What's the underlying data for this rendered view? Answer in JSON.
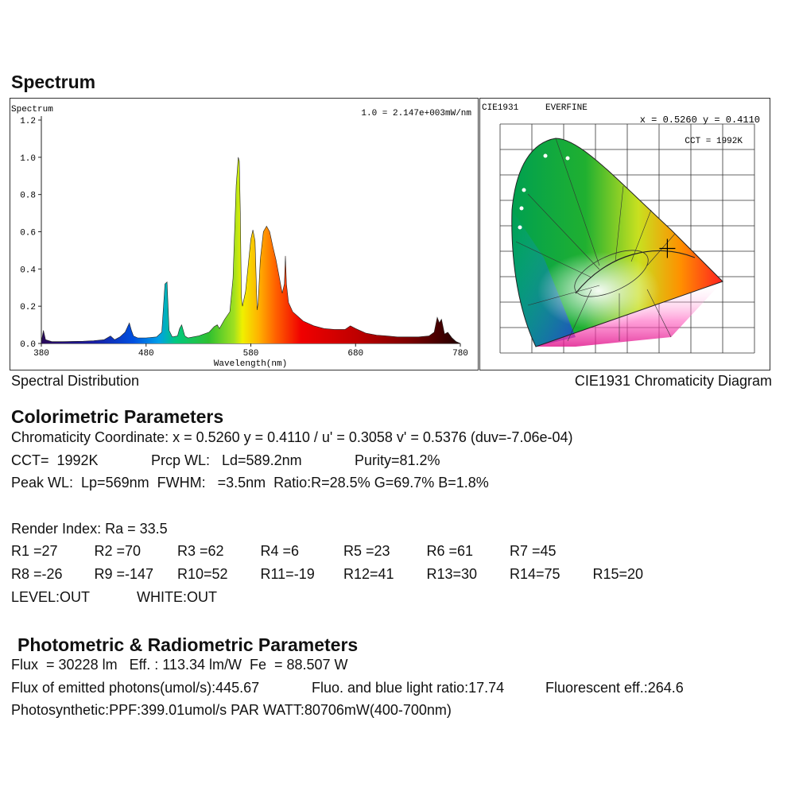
{
  "header": {
    "title": "Spectrum"
  },
  "chart_data": [
    {
      "type": "area",
      "title": "Spectrum",
      "scale_note": "1.0 = 2.147e+003mW/nm",
      "xlabel": "Wavelength(nm)",
      "xlim": [
        380,
        780
      ],
      "ylim": [
        0,
        1.2
      ],
      "xticks": [
        "380",
        "480",
        "580",
        "680",
        "780"
      ],
      "yticks": [
        "0.0",
        "0.2",
        "0.4",
        "0.6",
        "0.8",
        "1.0",
        "1.2"
      ],
      "x": [
        380,
        382,
        384,
        390,
        400,
        410,
        420,
        430,
        440,
        446,
        450,
        455,
        460,
        464,
        466,
        468,
        472,
        480,
        490,
        495,
        498,
        500,
        502,
        505,
        510,
        512,
        514,
        517,
        520,
        530,
        540,
        545,
        548,
        550,
        555,
        560,
        563,
        566,
        568,
        569,
        570,
        571,
        572,
        575,
        578,
        580,
        582,
        584,
        586,
        587,
        589,
        592,
        595,
        598,
        601,
        604,
        607,
        610,
        612,
        613,
        614,
        616,
        620,
        630,
        640,
        650,
        660,
        670,
        675,
        680,
        690,
        700,
        710,
        720,
        730,
        740,
        750,
        755,
        758,
        760,
        762,
        765,
        768,
        772,
        776,
        780
      ],
      "values": [
        0.008,
        0.07,
        0.02,
        0.01,
        0.01,
        0.011,
        0.012,
        0.015,
        0.02,
        0.04,
        0.02,
        0.035,
        0.06,
        0.11,
        0.07,
        0.04,
        0.03,
        0.03,
        0.035,
        0.06,
        0.32,
        0.33,
        0.07,
        0.035,
        0.04,
        0.08,
        0.1,
        0.04,
        0.03,
        0.04,
        0.06,
        0.09,
        0.1,
        0.08,
        0.13,
        0.17,
        0.35,
        0.85,
        1.0,
        0.98,
        0.7,
        0.25,
        0.2,
        0.28,
        0.45,
        0.56,
        0.61,
        0.55,
        0.18,
        0.22,
        0.45,
        0.6,
        0.63,
        0.6,
        0.52,
        0.45,
        0.36,
        0.27,
        0.32,
        0.47,
        0.32,
        0.22,
        0.17,
        0.12,
        0.095,
        0.08,
        0.075,
        0.075,
        0.095,
        0.08,
        0.055,
        0.045,
        0.04,
        0.035,
        0.035,
        0.035,
        0.04,
        0.06,
        0.14,
        0.11,
        0.13,
        0.05,
        0.06,
        0.03,
        0.01,
        0.0
      ]
    },
    {
      "type": "scatter",
      "title": "CIE1931",
      "brand": "EVERFINE",
      "coords_label": "x = 0.5260 y = 0.4110",
      "cct_label": "CCT = 1992K",
      "point": {
        "x": 0.526,
        "y": 0.411
      },
      "xlim": [
        0,
        0.8
      ],
      "ylim": [
        0,
        0.9
      ]
    }
  ],
  "captions": {
    "left": "Spectral Distribution",
    "right": "CIE1931 Chromaticity Diagram"
  },
  "colorimetric": {
    "title": "Colorimetric Parameters",
    "line1": "Chromaticity Coordinate: x = 0.5260 y = 0.4110 / u' = 0.3058 v' = 0.5376 (duv=-7.06e-04)",
    "cct": "CCT=  1992K",
    "prcp": "Prcp WL:   Ld=589.2nm",
    "purity": "Purity=81.2%",
    "peak": "Peak WL:  Lp=569nm  FWHM:   =3.5nm  Ratio:R=28.5% G=69.7% B=1.8%",
    "render": "Render Index: Ra = 33.5",
    "r_row1": [
      "R1 =27",
      "R2 =70",
      "R3 =62",
      "R4 =6",
      "R5 =23",
      "R6 =61",
      "R7 =45"
    ],
    "r_row2": [
      "R8 =-26",
      "R9 =-147",
      "R10=52",
      "R11=-19",
      "R12=41",
      "R13=30",
      "R14=75",
      "R15=20"
    ],
    "level": "LEVEL:OUT",
    "white": "WHITE:OUT"
  },
  "photometric": {
    "title": "Photometric & Radiometric Parameters",
    "line1": "Flux  = 30228 lm   Eff. : 113.34 lm/W  Fe  = 88.507 W",
    "photons": "Flux of emitted photons(umol/s):445.67",
    "fluo_ratio": "Fluo. and blue light ratio:17.74",
    "fluo_eff": "Fluorescent eff.:264.6",
    "line3": "Photosynthetic:PPF:399.01umol/s PAR WATT:80706mW(400-700nm)"
  }
}
